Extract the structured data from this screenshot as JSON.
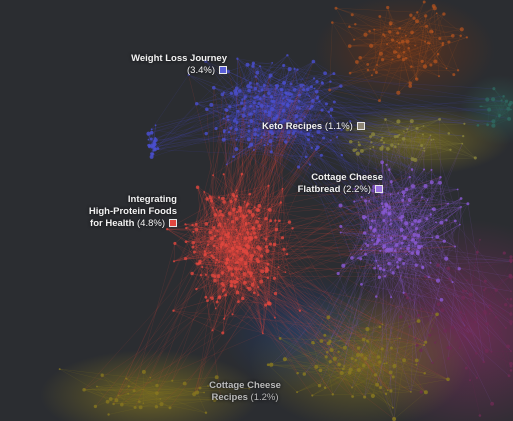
{
  "colors": {
    "background": "#2b2d31",
    "blue": "#4a4fd0",
    "red": "#e2473f",
    "purple": "#8b5ad6",
    "orange": "#b8541e",
    "olive": "#8f8a3c",
    "yellow": "#8a7a1f",
    "magenta": "#6e2a54",
    "teal": "#2f6b62"
  },
  "clusters": [
    {
      "name": "Weight Loss Journey",
      "percent": "(3.4%)",
      "color": "#5a5fd9"
    },
    {
      "name": "Keto Recipes",
      "percent": "(1.1%)",
      "color": "#8d8573"
    },
    {
      "name_line1": "Cottage Cheese",
      "name_line2": "Flatbread",
      "percent": "(2.2%)",
      "color": "#9a73e0"
    },
    {
      "name_line1": "Integrating",
      "name_line2": "High-Protein Foods",
      "name_line3": "for Health",
      "percent": "(4.8%)",
      "color": "#e2473f"
    },
    {
      "name_line1": "Cottage Cheese",
      "name_line2": "Recipes",
      "percent": "(1.2%)",
      "color": "#3a3a3a"
    }
  ]
}
